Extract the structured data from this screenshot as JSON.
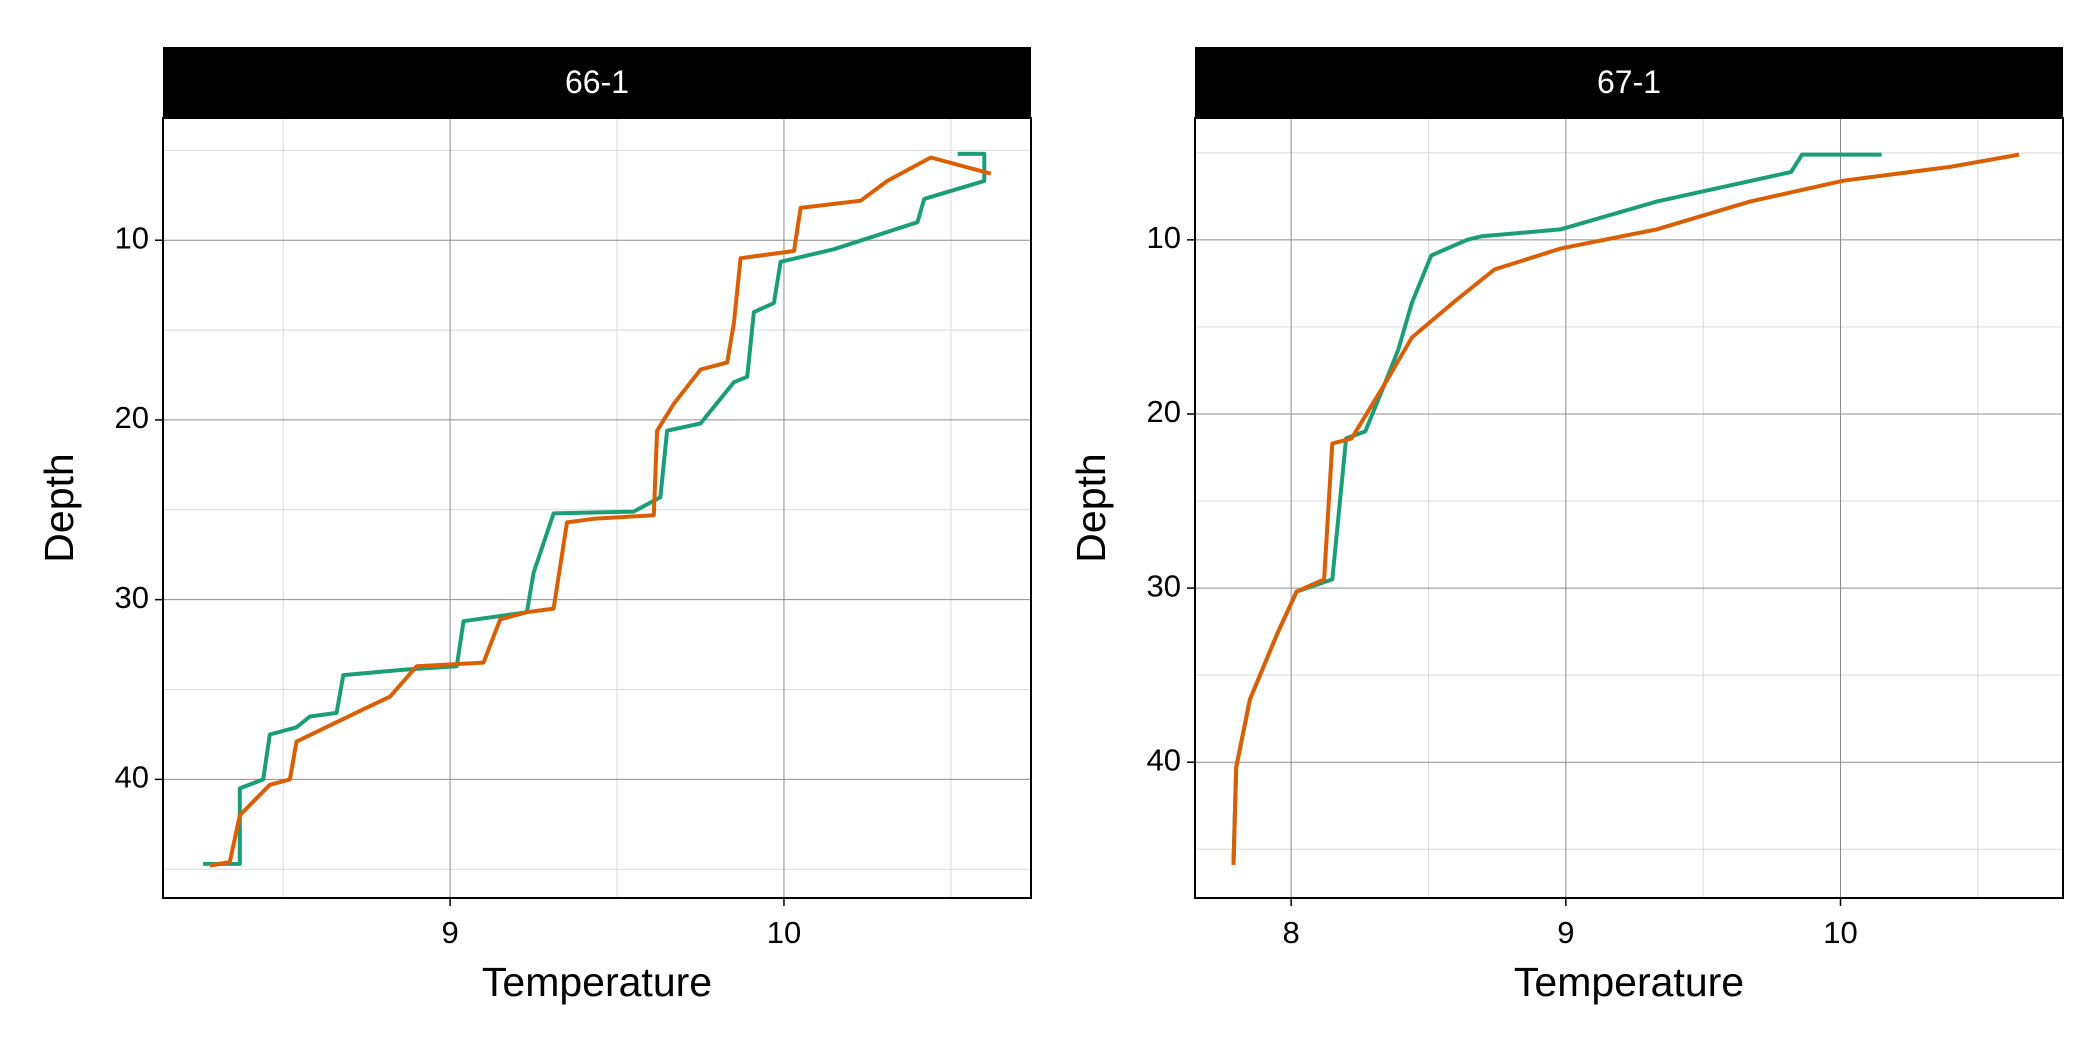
{
  "chart_data": [
    {
      "type": "line",
      "title": "66-1",
      "x_label": "Temperature",
      "y_label": "Depth",
      "xlim": [
        8.14,
        10.74
      ],
      "ylim": [
        3.2,
        46.6
      ],
      "y_reversed": true,
      "grid": true,
      "xticks": [
        9,
        10
      ],
      "yticks": [
        10,
        20,
        30,
        40
      ],
      "x_minor_ticks": [
        8.5,
        9.5,
        10.5
      ],
      "y_minor_ticks": [
        5,
        15,
        25,
        35,
        45
      ],
      "series": [
        {
          "color": "#1b9e77",
          "x": [
            8.26,
            8.37,
            8.37,
            8.44,
            8.46,
            8.54,
            8.58,
            8.66,
            8.68,
            8.86,
            9.02,
            9.04,
            9.23,
            9.25,
            9.31,
            9.55,
            9.63,
            9.65,
            9.75,
            9.85,
            9.89,
            9.91,
            9.97,
            9.99,
            10.15,
            10.4,
            10.42,
            10.6,
            10.6,
            10.52
          ],
          "values": [
            44.7,
            44.7,
            40.5,
            40.0,
            37.5,
            37.1,
            36.5,
            36.3,
            34.2,
            33.9,
            33.7,
            31.2,
            30.7,
            28.5,
            25.2,
            25.1,
            24.3,
            20.6,
            20.2,
            17.9,
            17.6,
            14.0,
            13.5,
            11.2,
            10.5,
            9.0,
            7.7,
            6.7,
            5.2,
            5.2
          ]
        },
        {
          "color": "#d95f02",
          "x": [
            8.28,
            8.34,
            8.37,
            8.46,
            8.52,
            8.54,
            8.74,
            8.82,
            8.9,
            9.1,
            9.15,
            9.23,
            9.31,
            9.33,
            9.35,
            9.43,
            9.61,
            9.62,
            9.67,
            9.75,
            9.83,
            9.85,
            9.87,
            10.03,
            10.05,
            10.23,
            10.31,
            10.44,
            10.62
          ],
          "values": [
            44.8,
            44.6,
            42.0,
            40.3,
            40.0,
            37.9,
            36.1,
            35.4,
            33.7,
            33.5,
            31.1,
            30.7,
            30.5,
            28.1,
            25.7,
            25.5,
            25.3,
            20.6,
            19.1,
            17.2,
            16.8,
            14.6,
            11.0,
            10.6,
            8.2,
            7.8,
            6.7,
            5.4,
            6.3
          ]
        }
      ]
    },
    {
      "type": "line",
      "title": "67-1",
      "x_label": "Temperature",
      "y_label": "Depth",
      "xlim": [
        7.65,
        10.81
      ],
      "ylim": [
        3.0,
        47.8
      ],
      "y_reversed": true,
      "grid": true,
      "xticks": [
        8,
        9,
        10
      ],
      "yticks": [
        10,
        20,
        30,
        40
      ],
      "x_minor_ticks": [
        8.5,
        9.5,
        10.5
      ],
      "y_minor_ticks": [
        5,
        15,
        25,
        35,
        45
      ],
      "series": [
        {
          "color": "#1b9e77",
          "x": [
            7.79,
            7.8,
            7.85,
            7.95,
            8.02,
            8.15,
            8.2,
            8.27,
            8.34,
            8.39,
            8.44,
            8.51,
            8.64,
            8.69,
            8.98,
            9.33,
            9.82,
            9.86,
            10.15
          ],
          "values": [
            45.7,
            40.3,
            36.4,
            32.6,
            30.2,
            29.5,
            21.4,
            21.0,
            18.3,
            16.3,
            13.6,
            10.9,
            10.0,
            9.8,
            9.4,
            7.8,
            6.1,
            5.1,
            5.1
          ]
        },
        {
          "color": "#d95f02",
          "x": [
            7.79,
            7.8,
            7.85,
            7.95,
            8.02,
            8.12,
            8.15,
            8.22,
            8.34,
            8.44,
            8.59,
            8.74,
            8.98,
            9.33,
            9.67,
            10.01,
            10.4,
            10.65
          ],
          "values": [
            45.9,
            40.3,
            36.4,
            32.6,
            30.2,
            29.5,
            21.7,
            21.4,
            18.3,
            15.6,
            13.6,
            11.7,
            10.5,
            9.4,
            7.8,
            6.6,
            5.8,
            5.1
          ]
        }
      ]
    }
  ]
}
